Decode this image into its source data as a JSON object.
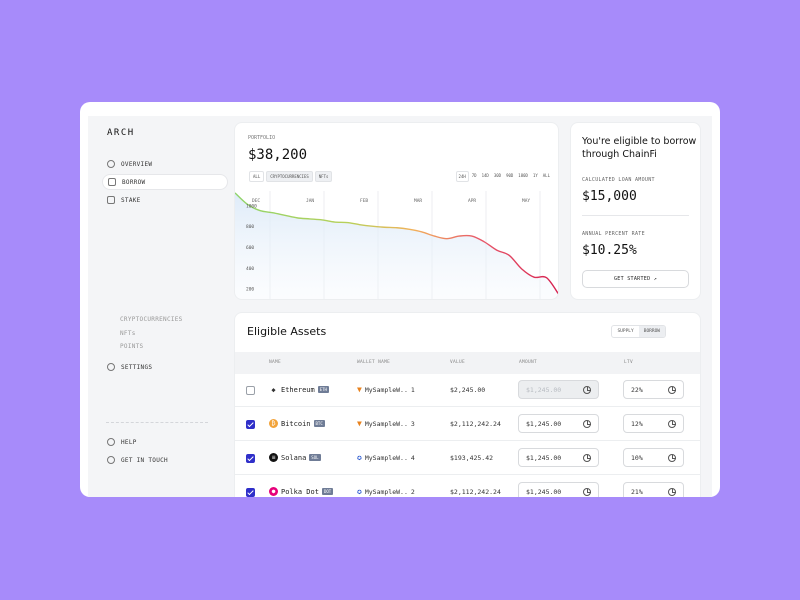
{
  "sidebar": {
    "logo": "ARCH",
    "items": [
      {
        "label": "OVERVIEW"
      },
      {
        "label": "BORROW"
      },
      {
        "label": "STAKE"
      },
      {
        "label": "SETTINGS"
      }
    ],
    "sub_items": [
      "CRYPTOCURRENCIES",
      "NFTs",
      "POINTS"
    ],
    "footer": [
      {
        "label": "HELP"
      },
      {
        "label": "GET IN TOUCH"
      }
    ]
  },
  "portfolio": {
    "label": "PORTFOLIO",
    "value": "$38,200",
    "filters": [
      "ALL",
      "CRYPTOCURRENCIES",
      "NFTs"
    ],
    "ranges": [
      "24H",
      "7D",
      "14D",
      "30D",
      "90D",
      "180D",
      "1Y",
      "ALL"
    ]
  },
  "chart_data": {
    "type": "line",
    "x_ticks": [
      "DEC",
      "JAN",
      "FEB",
      "MAR",
      "APR",
      "MAY"
    ],
    "y_ticks": [
      "1000",
      "800",
      "600",
      "400",
      "200"
    ],
    "ylim": [
      100,
      1100
    ],
    "points": [
      1120,
      1010,
      950,
      930,
      905,
      880,
      870,
      860,
      840,
      835,
      815,
      800,
      790,
      785,
      770,
      745,
      705,
      680,
      705,
      705,
      650,
      570,
      520,
      390,
      310,
      305,
      140
    ],
    "colors": {
      "start": "#8fd46a",
      "mid": "#f2b15a",
      "end": "#d6204f",
      "fill": "#e3eefa"
    }
  },
  "eligibility": {
    "title": "You're eligible to borrow through ChainFi",
    "loan_label": "CALCULATED LOAN AMOUNT",
    "loan_value": "$15,000",
    "apr_label": "ANNUAL  PERCENT RATE",
    "apr_value": "$10.25%",
    "button": "GET STARTED ↗"
  },
  "assets": {
    "title": "Eligible Assets",
    "toggle": [
      "SUPPLY",
      "BORROW"
    ],
    "columns": [
      "NAME",
      "WALLET NAME",
      "VALUE",
      "AMOUNT",
      "LTV"
    ],
    "rows": [
      {
        "name": "Ethereum",
        "symbol": "ETH",
        "wallet": "MySampleW..",
        "wallet_count": "1",
        "value": "$2,245.00",
        "amount": "$1,245.00",
        "ltv": "22%",
        "checked": false,
        "amount_disabled": true,
        "coin_color": "#ffffff",
        "coin_glyph": "◆",
        "wallet_icon": "fox"
      },
      {
        "name": "Bitcoin",
        "symbol": "BTC",
        "wallet": "MySampleW..",
        "wallet_count": "3",
        "value": "$2,112,242.24",
        "amount": "$1,245.00",
        "ltv": "12%",
        "checked": true,
        "amount_disabled": false,
        "coin_color": "#f2a33a",
        "coin_glyph": "₿",
        "wallet_icon": "fox"
      },
      {
        "name": "Solana",
        "symbol": "SOL",
        "wallet": "MySampleW..",
        "wallet_count": "4",
        "value": "$193,425.42",
        "amount": "$1,245.00",
        "ltv": "10%",
        "checked": true,
        "amount_disabled": false,
        "coin_color": "#111111",
        "coin_glyph": "≡",
        "wallet_icon": "shield"
      },
      {
        "name": "Polka Dot",
        "symbol": "DOT",
        "wallet": "MySampleW..",
        "wallet_count": "2",
        "value": "$2,112,242.24",
        "amount": "$1,245.00",
        "ltv": "21%",
        "checked": true,
        "amount_disabled": false,
        "coin_color": "#e6007a",
        "coin_glyph": "●",
        "wallet_icon": "shield"
      }
    ]
  }
}
